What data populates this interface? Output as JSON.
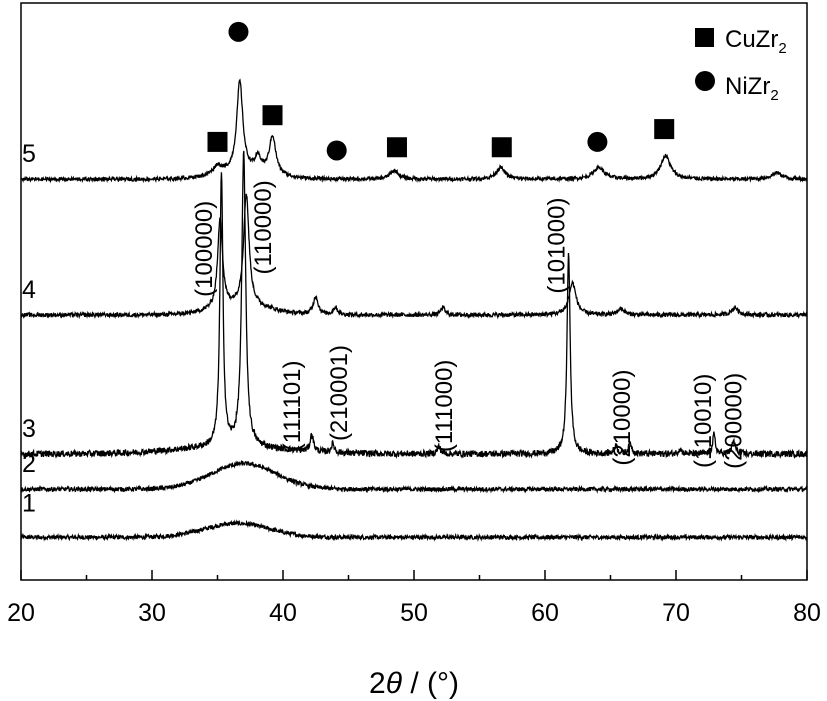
{
  "chart_data": {
    "type": "line",
    "title": "",
    "xlabel": {
      "prefix": "2",
      "symbol": "θ",
      "unit": " / (°)"
    },
    "ylabel": "",
    "xlim": [
      20,
      80
    ],
    "x_ticks": [
      "20",
      "30",
      "40",
      "50",
      "60",
      "70",
      "80"
    ],
    "grid": false,
    "legend": {
      "placement": "top-right",
      "entries": [
        {
          "marker": "square",
          "text": "CuZr",
          "sub": "2"
        },
        {
          "marker": "circle",
          "text": "NiZr",
          "sub": "2"
        }
      ]
    },
    "series": [
      {
        "name": "1",
        "baseline": 0.0,
        "noise": 0.4,
        "hump": {
          "center": 36.5,
          "width": 3.5,
          "height": 1.3
        },
        "peaks": []
      },
      {
        "name": "2",
        "baseline": 4.5,
        "noise": 0.4,
        "hump": {
          "center": 37.0,
          "width": 3.5,
          "height": 2.4
        },
        "peaks": []
      },
      {
        "name": "3",
        "baseline": 7.8,
        "noise": 0.6,
        "hump": {
          "center": 36.0,
          "width": 6.0,
          "height": 0.6
        },
        "peaks": [
          {
            "x": 35.3,
            "h": 25.5,
            "w": 0.14
          },
          {
            "x": 37.0,
            "h": 27.5,
            "w": 0.18
          },
          {
            "x": 42.2,
            "h": 1.6,
            "w": 0.15
          },
          {
            "x": 43.8,
            "h": 0.8,
            "w": 0.15
          },
          {
            "x": 51.9,
            "h": 0.7,
            "w": 0.15
          },
          {
            "x": 61.8,
            "h": 19.0,
            "w": 0.14
          },
          {
            "x": 65.4,
            "h": 0.8,
            "w": 0.15
          },
          {
            "x": 66.5,
            "h": 1.0,
            "w": 0.15
          },
          {
            "x": 70.3,
            "h": 0.5,
            "w": 0.15
          },
          {
            "x": 72.9,
            "h": 1.8,
            "w": 0.12
          },
          {
            "x": 74.4,
            "h": 1.2,
            "w": 0.15
          }
        ]
      },
      {
        "name": "4",
        "baseline": 20.8,
        "noise": 0.4,
        "hump": {
          "center": 37.0,
          "width": 3.0,
          "height": 0.8
        },
        "peaks": [
          {
            "x": 35.2,
            "h": 8.5,
            "w": 0.22
          },
          {
            "x": 37.2,
            "h": 10.5,
            "w": 0.25
          },
          {
            "x": 42.5,
            "h": 1.7,
            "w": 0.22
          },
          {
            "x": 44.0,
            "h": 0.7,
            "w": 0.2
          },
          {
            "x": 52.2,
            "h": 0.7,
            "w": 0.2
          },
          {
            "x": 62.1,
            "h": 3.0,
            "w": 0.32
          },
          {
            "x": 65.8,
            "h": 0.6,
            "w": 0.3
          },
          {
            "x": 74.5,
            "h": 0.7,
            "w": 0.3
          }
        ]
      },
      {
        "name": "5",
        "baseline": 33.5,
        "noise": 0.35,
        "hump": {
          "center": 37.0,
          "width": 3.0,
          "height": 0.6
        },
        "peaks": [
          {
            "x": 35.0,
            "h": 0.8,
            "w": 0.4
          },
          {
            "x": 36.7,
            "h": 8.5,
            "w": 0.28
          },
          {
            "x": 38.1,
            "h": 1.3,
            "w": 0.3
          },
          {
            "x": 39.2,
            "h": 3.6,
            "w": 0.3
          },
          {
            "x": 48.5,
            "h": 0.8,
            "w": 0.4
          },
          {
            "x": 56.6,
            "h": 1.1,
            "w": 0.4
          },
          {
            "x": 64.1,
            "h": 1.1,
            "w": 0.5
          },
          {
            "x": 69.2,
            "h": 2.2,
            "w": 0.45
          },
          {
            "x": 77.7,
            "h": 0.6,
            "w": 0.5
          }
        ]
      }
    ],
    "markers": [
      {
        "shape": "square",
        "x": 35.0,
        "y": 37.0
      },
      {
        "shape": "circle",
        "x": 36.6,
        "y": 47.3
      },
      {
        "shape": "square",
        "x": 39.2,
        "y": 39.5
      },
      {
        "shape": "circle",
        "x": 44.1,
        "y": 36.2
      },
      {
        "shape": "square",
        "x": 48.7,
        "y": 36.5
      },
      {
        "shape": "square",
        "x": 56.7,
        "y": 36.5
      },
      {
        "shape": "circle",
        "x": 64.0,
        "y": 37.0
      },
      {
        "shape": "square",
        "x": 69.1,
        "y": 38.2
      }
    ],
    "annotations": [
      {
        "text": "(100000)",
        "x": 34.1,
        "y": 27.0
      },
      {
        "text": "(110000)",
        "x": 38.6,
        "y": 29.0
      },
      {
        "text": "(101000)",
        "x": 61.0,
        "y": 27.3
      },
      {
        "text": "(111101)",
        "x": 40.8,
        "y": 12.3
      },
      {
        "text": "(210001)",
        "x": 44.4,
        "y": 13.5
      },
      {
        "text": "(111000)",
        "x": 52.4,
        "y": 12.3
      },
      {
        "text": "(210000)",
        "x": 66.0,
        "y": 11.2
      },
      {
        "text": "(110010)",
        "x": 72.2,
        "y": 10.9
      },
      {
        "text": "(200000)",
        "x": 74.5,
        "y": 10.9
      }
    ],
    "ylim": [
      -4,
      50
    ]
  }
}
